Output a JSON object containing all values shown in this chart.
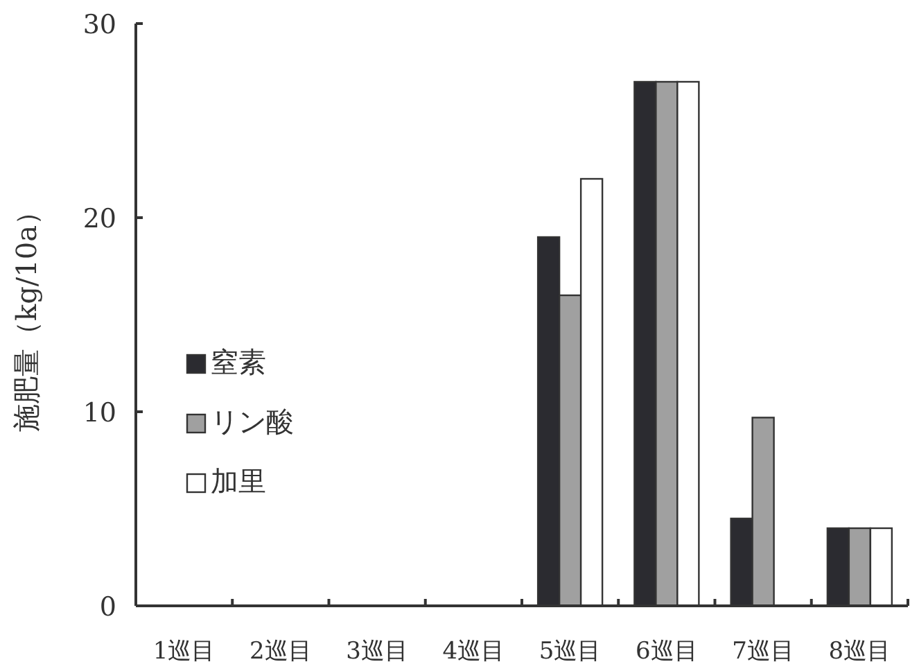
{
  "chart_data": {
    "type": "bar",
    "ylabel": "施肥量（kg/10a）",
    "categories": [
      "1巡目",
      "2巡目",
      "3巡目",
      "4巡目",
      "5巡目",
      "6巡目",
      "7巡目",
      "8巡目"
    ],
    "series": [
      {
        "name": "窒素",
        "color": "#2b2b30",
        "values": [
          0,
          0,
          0,
          0,
          19,
          27,
          4.5,
          4
        ]
      },
      {
        "name": "リン酸",
        "color": "#a0a0a0",
        "values": [
          0,
          0,
          0,
          0,
          16,
          27,
          9.7,
          4
        ]
      },
      {
        "name": "加里",
        "color": "#ffffff",
        "values": [
          0,
          0,
          0,
          0,
          22,
          27,
          0,
          4
        ]
      }
    ],
    "ylim": [
      0,
      30
    ],
    "yticks": [
      0,
      10,
      20,
      30
    ],
    "grid": false,
    "legend": "left"
  }
}
